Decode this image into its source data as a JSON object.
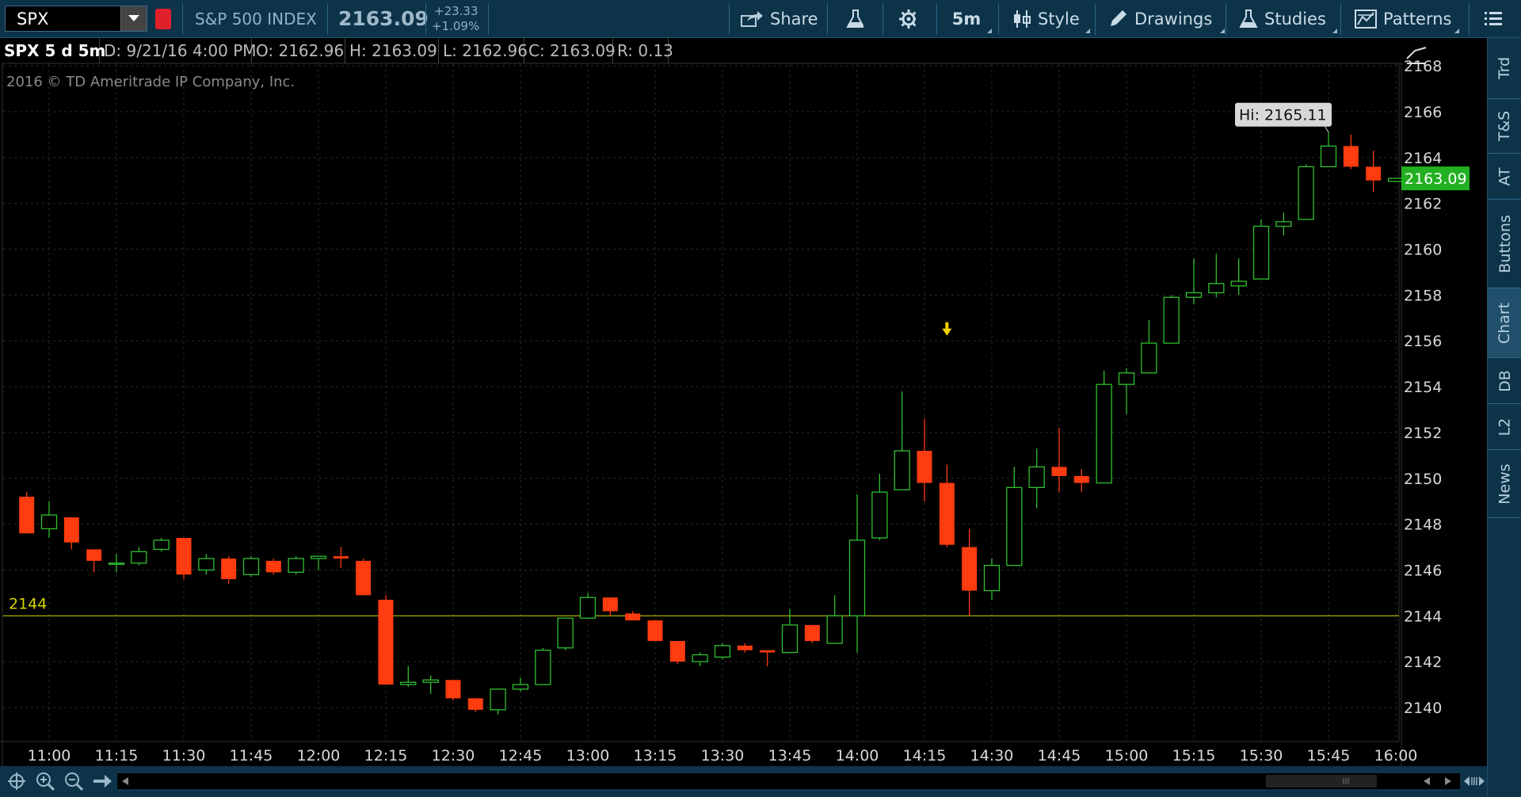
{
  "toolbar": {
    "symbol": "SPX",
    "index_name": "S&P 500 INDEX",
    "last_price": "2163.09",
    "change_abs": "+23.33",
    "change_pct": "+1.09%",
    "share_label": "Share",
    "timeframe_label": "5m",
    "style_label": "Style",
    "drawings_label": "Drawings",
    "studies_label": "Studies",
    "patterns_label": "Patterns"
  },
  "info_row": {
    "symbol_period": "SPX 5 d 5m",
    "date": "D: 9/21/16 4:00 PM",
    "open": "O: 2162.96",
    "high": "H: 2163.09",
    "low": "L: 2162.96",
    "close": "C: 2163.09",
    "range": "R: 0.13"
  },
  "copyright": "2016 © TD Ameritrade IP Company, Inc.",
  "sidebar": {
    "tabs": [
      {
        "label": "Trd"
      },
      {
        "label": "T&S"
      },
      {
        "label": "AT"
      },
      {
        "label": "Buttons"
      },
      {
        "label": "Chart"
      },
      {
        "label": "DB"
      },
      {
        "label": "L2"
      },
      {
        "label": "News"
      }
    ]
  },
  "colors": {
    "up": "#2fc02f",
    "down": "#ff3b10",
    "grid": "#2a2a2a",
    "level_line": "#d4d400",
    "price_tag": "#22b022",
    "toolbar_bg": "#0d3349"
  },
  "chart_data": {
    "type": "candlestick",
    "ylim": [
      2138.5,
      2169
    ],
    "yticks": [
      2140,
      2142,
      2144,
      2146,
      2148,
      2150,
      2152,
      2154,
      2156,
      2158,
      2160,
      2162,
      2164,
      2166,
      2168
    ],
    "xtick_labels": [
      "11:00",
      "11:15",
      "11:30",
      "11:45",
      "12:00",
      "12:15",
      "12:30",
      "12:45",
      "13:00",
      "13:15",
      "13:30",
      "13:45",
      "14:00",
      "14:15",
      "14:30",
      "14:45",
      "15:00",
      "15:15",
      "15:30",
      "15:45",
      "16:00"
    ],
    "first_bar_time": "10:55",
    "bar_minutes": 5,
    "level_line": {
      "value": 2144,
      "label": "2144"
    },
    "high_label": {
      "text": "Hi: 2165.11",
      "value": 2165.11
    },
    "last_price_tag": "2163.09",
    "event_marker_time": "14:20",
    "candles": [
      {
        "o": 2149.2,
        "h": 2149.4,
        "l": 2147.6,
        "c": 2147.6
      },
      {
        "o": 2147.8,
        "h": 2149.0,
        "l": 2147.4,
        "c": 2148.4
      },
      {
        "o": 2148.3,
        "h": 2148.3,
        "l": 2146.9,
        "c": 2147.2
      },
      {
        "o": 2146.9,
        "h": 2146.9,
        "l": 2145.9,
        "c": 2146.4
      },
      {
        "o": 2146.3,
        "h": 2146.7,
        "l": 2145.9,
        "c": 2146.3
      },
      {
        "o": 2146.3,
        "h": 2147.0,
        "l": 2146.2,
        "c": 2146.8
      },
      {
        "o": 2146.9,
        "h": 2147.4,
        "l": 2146.8,
        "c": 2147.3
      },
      {
        "o": 2147.4,
        "h": 2147.4,
        "l": 2145.6,
        "c": 2145.8
      },
      {
        "o": 2146.0,
        "h": 2146.7,
        "l": 2145.8,
        "c": 2146.5
      },
      {
        "o": 2146.5,
        "h": 2146.6,
        "l": 2145.4,
        "c": 2145.6
      },
      {
        "o": 2145.8,
        "h": 2146.6,
        "l": 2145.7,
        "c": 2146.5
      },
      {
        "o": 2146.4,
        "h": 2146.5,
        "l": 2145.8,
        "c": 2145.9
      },
      {
        "o": 2145.9,
        "h": 2146.6,
        "l": 2145.8,
        "c": 2146.5
      },
      {
        "o": 2146.5,
        "h": 2146.6,
        "l": 2146.0,
        "c": 2146.6
      },
      {
        "o": 2146.6,
        "h": 2147.0,
        "l": 2146.1,
        "c": 2146.5
      },
      {
        "o": 2146.4,
        "h": 2146.5,
        "l": 2144.9,
        "c": 2144.9
      },
      {
        "o": 2144.7,
        "h": 2144.9,
        "l": 2141.0,
        "c": 2141.0
      },
      {
        "o": 2141.0,
        "h": 2141.8,
        "l": 2140.9,
        "c": 2141.1
      },
      {
        "o": 2141.1,
        "h": 2141.4,
        "l": 2140.6,
        "c": 2141.2
      },
      {
        "o": 2141.2,
        "h": 2141.2,
        "l": 2140.3,
        "c": 2140.4
      },
      {
        "o": 2140.4,
        "h": 2140.4,
        "l": 2139.8,
        "c": 2139.9
      },
      {
        "o": 2139.9,
        "h": 2140.8,
        "l": 2139.7,
        "c": 2140.8
      },
      {
        "o": 2140.8,
        "h": 2141.3,
        "l": 2140.7,
        "c": 2141.0
      },
      {
        "o": 2141.0,
        "h": 2142.6,
        "l": 2141.0,
        "c": 2142.5
      },
      {
        "o": 2142.6,
        "h": 2143.9,
        "l": 2142.5,
        "c": 2143.9
      },
      {
        "o": 2143.9,
        "h": 2145.0,
        "l": 2143.9,
        "c": 2144.8
      },
      {
        "o": 2144.8,
        "h": 2144.8,
        "l": 2144.0,
        "c": 2144.2
      },
      {
        "o": 2144.1,
        "h": 2144.2,
        "l": 2143.8,
        "c": 2143.8
      },
      {
        "o": 2143.8,
        "h": 2143.8,
        "l": 2142.9,
        "c": 2142.9
      },
      {
        "o": 2142.9,
        "h": 2142.9,
        "l": 2141.9,
        "c": 2142.0
      },
      {
        "o": 2142.0,
        "h": 2142.4,
        "l": 2141.8,
        "c": 2142.3
      },
      {
        "o": 2142.2,
        "h": 2142.8,
        "l": 2142.1,
        "c": 2142.7
      },
      {
        "o": 2142.7,
        "h": 2142.8,
        "l": 2142.4,
        "c": 2142.5
      },
      {
        "o": 2142.5,
        "h": 2142.5,
        "l": 2141.8,
        "c": 2142.4
      },
      {
        "o": 2142.4,
        "h": 2144.3,
        "l": 2142.4,
        "c": 2143.6
      },
      {
        "o": 2143.6,
        "h": 2143.6,
        "l": 2142.8,
        "c": 2142.9
      },
      {
        "o": 2142.8,
        "h": 2144.9,
        "l": 2142.8,
        "c": 2144.0
      },
      {
        "o": 2144.0,
        "h": 2149.3,
        "l": 2142.4,
        "c": 2147.3
      },
      {
        "o": 2147.4,
        "h": 2150.2,
        "l": 2147.3,
        "c": 2149.4
      },
      {
        "o": 2149.5,
        "h": 2153.8,
        "l": 2149.5,
        "c": 2151.2
      },
      {
        "o": 2151.2,
        "h": 2152.6,
        "l": 2149.0,
        "c": 2149.8
      },
      {
        "o": 2149.8,
        "h": 2150.6,
        "l": 2147.0,
        "c": 2147.1
      },
      {
        "o": 2147.0,
        "h": 2147.8,
        "l": 2144.0,
        "c": 2145.1
      },
      {
        "o": 2145.1,
        "h": 2146.5,
        "l": 2144.7,
        "c": 2146.2
      },
      {
        "o": 2146.2,
        "h": 2150.5,
        "l": 2146.2,
        "c": 2149.6
      },
      {
        "o": 2149.6,
        "h": 2151.3,
        "l": 2148.7,
        "c": 2150.5
      },
      {
        "o": 2150.5,
        "h": 2152.2,
        "l": 2149.4,
        "c": 2150.1
      },
      {
        "o": 2150.1,
        "h": 2150.4,
        "l": 2149.4,
        "c": 2149.8
      },
      {
        "o": 2149.8,
        "h": 2154.7,
        "l": 2149.8,
        "c": 2154.1
      },
      {
        "o": 2154.1,
        "h": 2154.8,
        "l": 2152.8,
        "c": 2154.6
      },
      {
        "o": 2154.6,
        "h": 2156.9,
        "l": 2154.6,
        "c": 2155.9
      },
      {
        "o": 2155.9,
        "h": 2158.0,
        "l": 2155.9,
        "c": 2157.9
      },
      {
        "o": 2157.9,
        "h": 2159.6,
        "l": 2157.6,
        "c": 2158.1
      },
      {
        "o": 2158.1,
        "h": 2159.8,
        "l": 2157.9,
        "c": 2158.5
      },
      {
        "o": 2158.4,
        "h": 2159.6,
        "l": 2158.0,
        "c": 2158.6
      },
      {
        "o": 2158.7,
        "h": 2161.3,
        "l": 2158.7,
        "c": 2161.0
      },
      {
        "o": 2161.0,
        "h": 2161.6,
        "l": 2160.6,
        "c": 2161.2
      },
      {
        "o": 2161.3,
        "h": 2163.7,
        "l": 2161.3,
        "c": 2163.6
      },
      {
        "o": 2163.6,
        "h": 2165.11,
        "l": 2163.6,
        "c": 2164.5
      },
      {
        "o": 2164.5,
        "h": 2165.0,
        "l": 2163.5,
        "c": 2163.6
      },
      {
        "o": 2163.6,
        "h": 2164.3,
        "l": 2162.5,
        "c": 2163.0
      },
      {
        "o": 2162.96,
        "h": 2163.09,
        "l": 2162.96,
        "c": 2163.09
      }
    ]
  }
}
